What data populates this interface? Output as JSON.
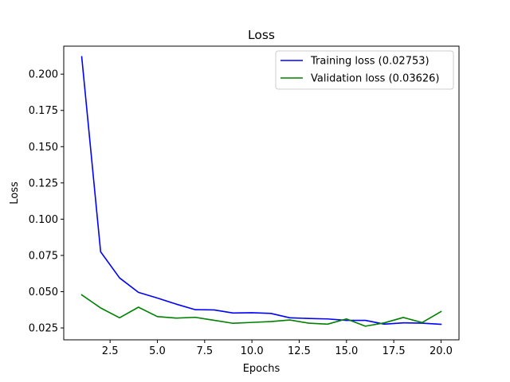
{
  "chart_data": {
    "type": "line",
    "title": "Loss",
    "xlabel": "Epochs",
    "ylabel": "Loss",
    "xlim": [
      0.05,
      20.95
    ],
    "ylim": [
      0.0168,
      0.2193
    ],
    "xticks": [
      2.5,
      5.0,
      7.5,
      10.0,
      12.5,
      15.0,
      17.5,
      20.0
    ],
    "xtick_labels": [
      "2.5",
      "5.0",
      "7.5",
      "10.0",
      "12.5",
      "15.0",
      "17.5",
      "20.0"
    ],
    "yticks": [
      0.025,
      0.05,
      0.075,
      0.1,
      0.125,
      0.15,
      0.175,
      0.2
    ],
    "ytick_labels": [
      "0.025",
      "0.050",
      "0.075",
      "0.100",
      "0.125",
      "0.150",
      "0.175",
      "0.200"
    ],
    "grid": false,
    "legend_position": "top-right",
    "x": [
      1,
      2,
      3,
      4,
      5,
      6,
      7,
      8,
      9,
      10,
      11,
      12,
      13,
      14,
      15,
      16,
      17,
      18,
      19,
      20
    ],
    "series": [
      {
        "name": "Training loss (0.02753)",
        "color": "#0000ff",
        "values": [
          0.212,
          0.0775,
          0.0595,
          0.0495,
          0.0456,
          0.0414,
          0.0376,
          0.0374,
          0.0353,
          0.0355,
          0.035,
          0.032,
          0.0315,
          0.0312,
          0.0302,
          0.0302,
          0.0276,
          0.0285,
          0.0283,
          0.0275
        ]
      },
      {
        "name": "Validation loss (0.03626)",
        "color": "#008000",
        "values": [
          0.0478,
          0.0388,
          0.032,
          0.0393,
          0.0328,
          0.0318,
          0.0323,
          0.0303,
          0.0282,
          0.0288,
          0.0294,
          0.0305,
          0.0283,
          0.0276,
          0.0312,
          0.0262,
          0.0285,
          0.0322,
          0.0287,
          0.0363
        ]
      }
    ]
  }
}
